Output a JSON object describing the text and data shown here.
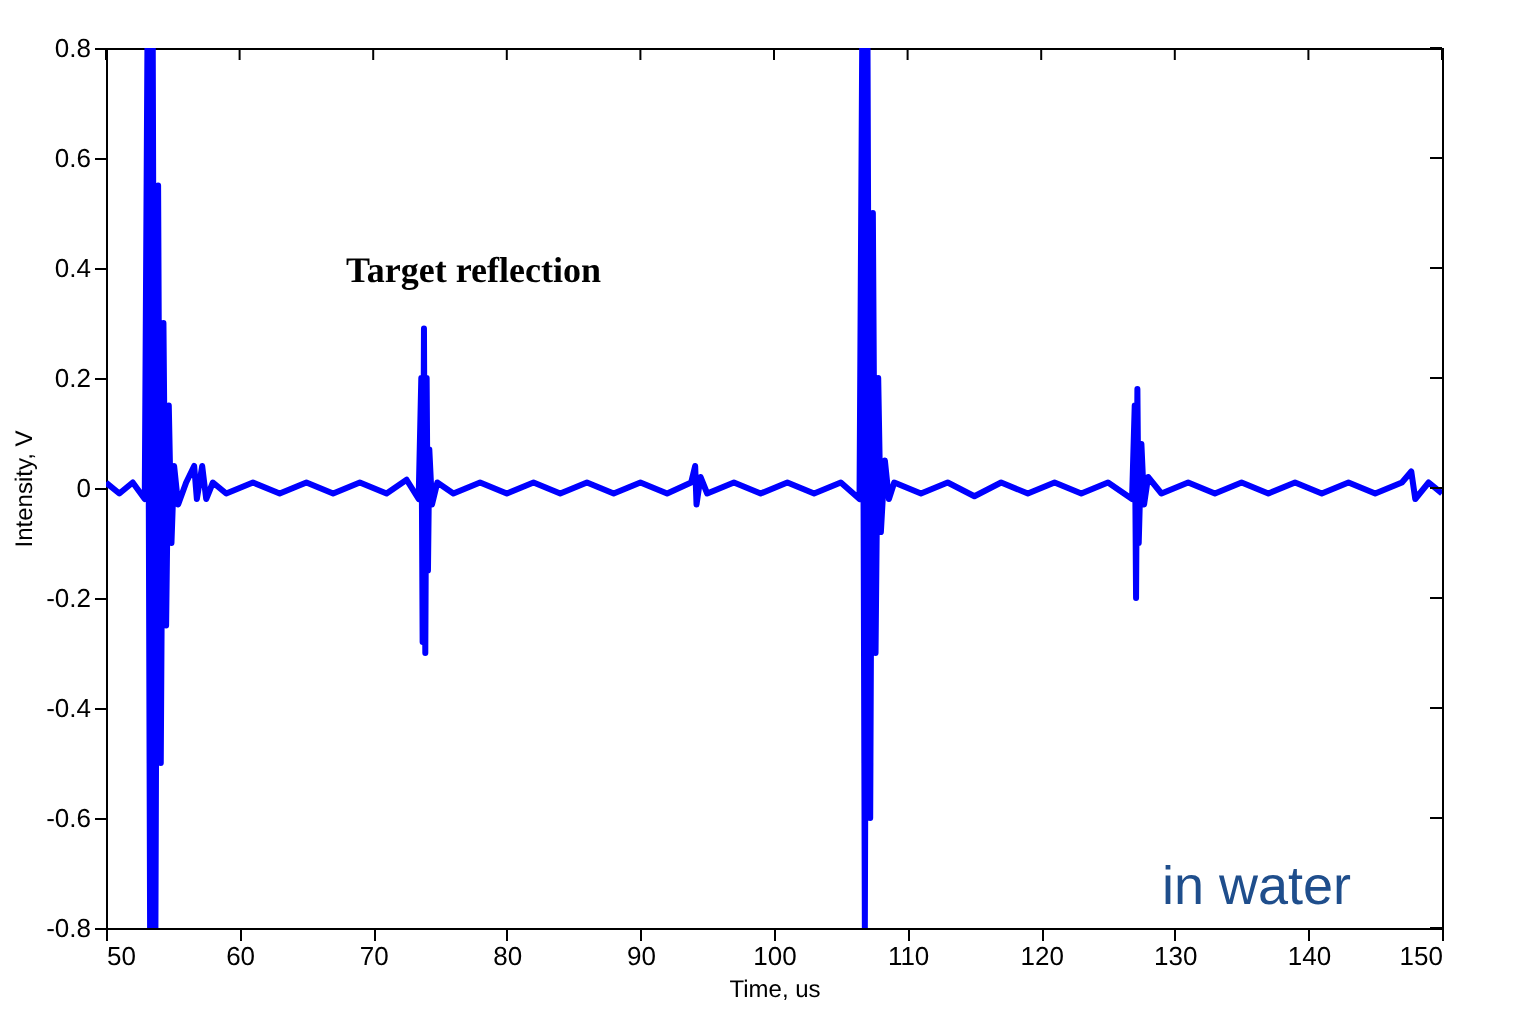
{
  "chart_data": {
    "type": "line",
    "xlabel": "Time, us",
    "ylabel": "Intensity, V",
    "xlim": [
      50,
      150
    ],
    "xticks": [
      50,
      60,
      70,
      80,
      90,
      100,
      110,
      120,
      130,
      140,
      150
    ],
    "ylim": [
      -0.8,
      0.8
    ],
    "yticks": [
      -0.8,
      -0.6,
      -0.4,
      -0.2,
      0,
      0.2,
      0.4,
      0.6,
      0.8
    ],
    "marker": "none",
    "line_style": "solid",
    "annotations": [
      "Target reflection",
      "in water"
    ],
    "series": [
      {
        "color": "#0000ff",
        "x": [
          50,
          51,
          52,
          52.9,
          53.1,
          53.3,
          53.5,
          53.7,
          53.9,
          54.1,
          54.3,
          54.5,
          54.7,
          54.9,
          55.1,
          55.4,
          56,
          56.6,
          56.8,
          57.2,
          57.5,
          58,
          59,
          61,
          63,
          65,
          67,
          69,
          71,
          72.5,
          73.4,
          73.6,
          73.7,
          73.8,
          73.9,
          74.0,
          74.1,
          74.2,
          74.4,
          74.8,
          76,
          78,
          80,
          82,
          84,
          86,
          88,
          90,
          92,
          93.8,
          94.1,
          94.2,
          94.5,
          95,
          97,
          99,
          101,
          103,
          105,
          106.4,
          106.6,
          106.8,
          107.0,
          107.2,
          107.4,
          107.6,
          107.8,
          108,
          108.3,
          108.6,
          109,
          111,
          113,
          115,
          117,
          119,
          121,
          123,
          125,
          126.8,
          127.0,
          127.1,
          127.2,
          127.3,
          127.5,
          127.7,
          128,
          129,
          131,
          133,
          135,
          137,
          139,
          141,
          143,
          145,
          147,
          147.7,
          148,
          149,
          150
        ],
        "values": [
          0.01,
          -0.01,
          0.01,
          -0.02,
          0.8,
          -0.8,
          0.8,
          -0.8,
          0.55,
          -0.5,
          0.3,
          -0.25,
          0.15,
          -0.1,
          0.04,
          -0.03,
          0.01,
          0.04,
          -0.02,
          0.04,
          -0.02,
          0.01,
          -0.01,
          0.01,
          -0.01,
          0.01,
          -0.01,
          0.01,
          -0.01,
          0.015,
          -0.02,
          0.2,
          -0.28,
          0.29,
          -0.3,
          0.2,
          -0.15,
          0.07,
          -0.03,
          0.01,
          -0.01,
          0.01,
          -0.01,
          0.01,
          -0.01,
          0.01,
          -0.01,
          0.01,
          -0.01,
          0.01,
          0.04,
          -0.03,
          0.02,
          -0.01,
          0.01,
          -0.01,
          0.01,
          -0.01,
          0.01,
          -0.02,
          0.8,
          -0.8,
          0.8,
          -0.6,
          0.5,
          -0.3,
          0.2,
          -0.08,
          0.05,
          -0.02,
          0.01,
          -0.01,
          0.01,
          -0.015,
          0.01,
          -0.01,
          0.01,
          -0.01,
          0.01,
          -0.02,
          0.15,
          -0.2,
          0.18,
          -0.1,
          0.08,
          -0.03,
          0.02,
          -0.01,
          0.01,
          -0.01,
          0.01,
          -0.01,
          0.01,
          -0.01,
          0.01,
          -0.01,
          0.01,
          0.03,
          -0.02,
          0.01,
          -0.01
        ]
      }
    ]
  }
}
